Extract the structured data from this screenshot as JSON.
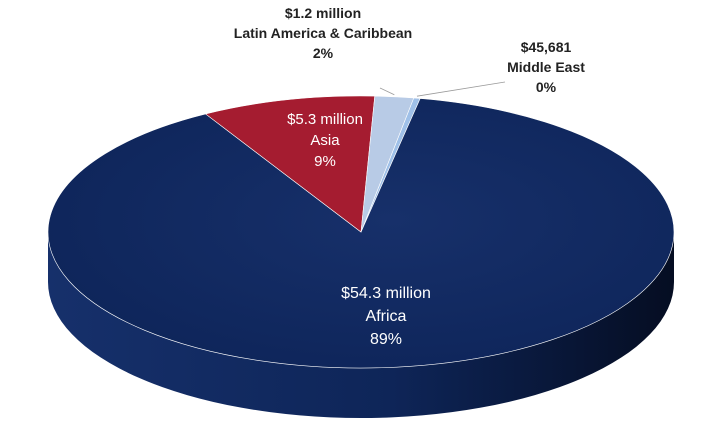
{
  "chart_data": {
    "type": "pie",
    "style": "3d",
    "slices": [
      {
        "value_label": "$54.3 million",
        "category": "Africa",
        "percent": 89,
        "color": "#10285f",
        "side_color": "#0b1c47",
        "label_color": "#ffffff"
      },
      {
        "value_label": "$5.3 million",
        "category": "Asia",
        "percent": 9,
        "color": "#a51c30",
        "side_color": "#7a1322",
        "label_color": "#ffffff"
      },
      {
        "value_label": "$1.2 million",
        "category": "Latin America & Caribbean",
        "percent": 2,
        "color": "#b8cbe6",
        "side_color": "#8ea4c4",
        "label_color": "#222222"
      },
      {
        "value_label": "$45,681",
        "category": "Middle East",
        "percent": 0,
        "color": "#9fc0e8",
        "side_color": "#7c9cc4",
        "label_color": "#222222"
      }
    ],
    "legend": "none"
  }
}
